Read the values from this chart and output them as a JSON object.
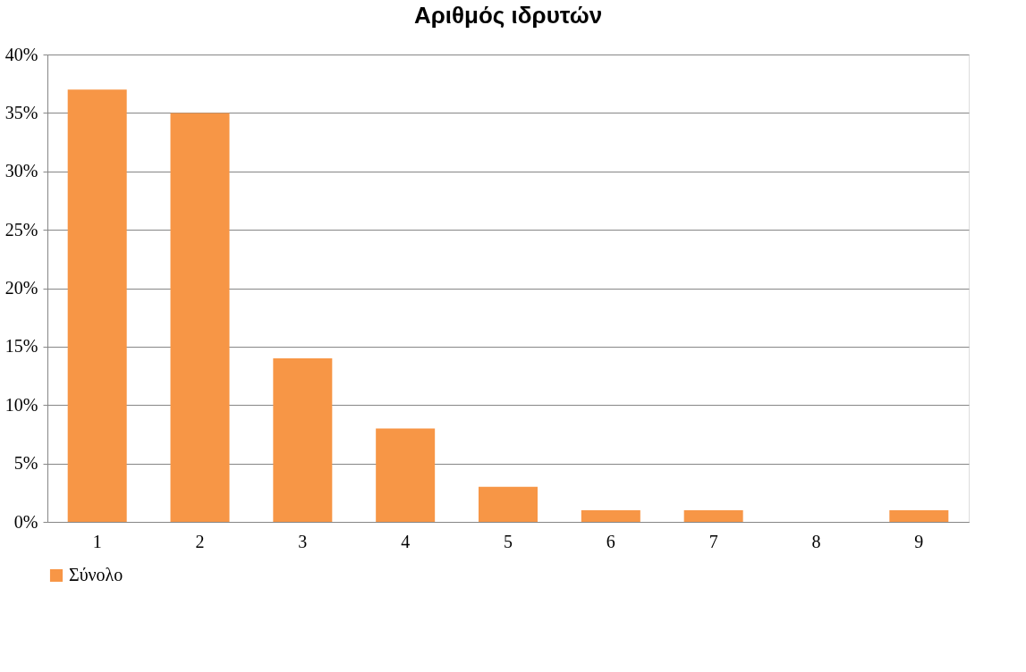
{
  "chart_data": {
    "type": "bar",
    "title": "Αριθμός ιδρυτών",
    "categories": [
      "1",
      "2",
      "3",
      "4",
      "5",
      "6",
      "7",
      "8",
      "9"
    ],
    "series": [
      {
        "name": "Σύνολο",
        "color": "#f79646",
        "values": [
          37,
          35,
          14,
          8,
          3,
          1,
          1,
          0,
          1
        ]
      }
    ],
    "ylim": [
      0,
      40
    ],
    "yticks": [
      {
        "value": 0,
        "label": "0%"
      },
      {
        "value": 5,
        "label": "5%"
      },
      {
        "value": 10,
        "label": "10%"
      },
      {
        "value": 15,
        "label": "15%"
      },
      {
        "value": 20,
        "label": "20%"
      },
      {
        "value": 25,
        "label": "25%"
      },
      {
        "value": 30,
        "label": "30%"
      },
      {
        "value": 35,
        "label": "35%"
      },
      {
        "value": 40,
        "label": "40%"
      }
    ],
    "grid": "y",
    "legend": "bottom"
  }
}
